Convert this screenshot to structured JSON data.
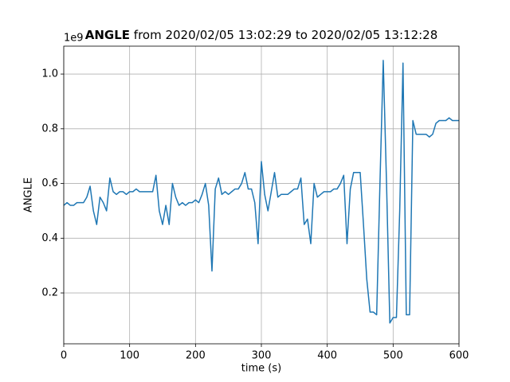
{
  "chart_data": {
    "type": "line",
    "title_bold": "ANGLE",
    "title": "from 2020/02/05 13:02:29 to 2020/02/05 13:12:28",
    "x_label": "time (s)",
    "y_label": "ANGLE",
    "y_offset_label": "1e9",
    "xlim": [
      0,
      600
    ],
    "ylim": [
      0.014,
      1.102
    ],
    "xticks": [
      0,
      100,
      200,
      300,
      400,
      500,
      600
    ],
    "yticks": [
      0.2,
      0.4,
      0.6,
      0.8,
      {
        "value": 1,
        "label": "1.0"
      }
    ],
    "grid": true,
    "x": [
      0,
      5,
      10,
      15,
      20,
      25,
      30,
      35,
      40,
      45,
      50,
      55,
      60,
      65,
      70,
      75,
      80,
      85,
      90,
      95,
      100,
      105,
      110,
      115,
      120,
      125,
      130,
      135,
      140,
      145,
      150,
      155,
      160,
      165,
      170,
      175,
      180,
      185,
      190,
      195,
      200,
      205,
      210,
      215,
      220,
      225,
      230,
      235,
      240,
      245,
      250,
      255,
      260,
      265,
      270,
      275,
      280,
      285,
      290,
      295,
      300,
      305,
      310,
      315,
      320,
      325,
      330,
      335,
      340,
      345,
      350,
      355,
      360,
      365,
      370,
      375,
      380,
      385,
      390,
      395,
      400,
      405,
      410,
      415,
      420,
      425,
      430,
      435,
      440,
      445,
      450,
      455,
      460,
      465,
      470,
      475,
      480,
      485,
      490,
      495,
      500,
      505,
      510,
      515,
      520,
      525,
      530,
      535,
      540,
      545,
      550,
      555,
      560,
      565,
      570,
      575,
      580,
      585,
      590,
      595,
      600
    ],
    "series": [
      {
        "name": "ANGLE",
        "color": "#1f77b4",
        "values": [
          0.52,
          0.53,
          0.52,
          0.52,
          0.53,
          0.53,
          0.53,
          0.55,
          0.59,
          0.5,
          0.45,
          0.55,
          0.53,
          0.5,
          0.62,
          0.57,
          0.56,
          0.57,
          0.57,
          0.56,
          0.57,
          0.57,
          0.58,
          0.57,
          0.57,
          0.57,
          0.57,
          0.57,
          0.63,
          0.5,
          0.45,
          0.52,
          0.45,
          0.6,
          0.55,
          0.52,
          0.53,
          0.52,
          0.53,
          0.53,
          0.54,
          0.53,
          0.56,
          0.6,
          0.52,
          0.28,
          0.58,
          0.62,
          0.56,
          0.57,
          0.56,
          0.57,
          0.58,
          0.58,
          0.6,
          0.64,
          0.58,
          0.58,
          0.53,
          0.38,
          0.68,
          0.56,
          0.5,
          0.57,
          0.64,
          0.55,
          0.56,
          0.56,
          0.56,
          0.57,
          0.58,
          0.58,
          0.62,
          0.45,
          0.47,
          0.38,
          0.6,
          0.55,
          0.56,
          0.57,
          0.57,
          0.57,
          0.58,
          0.58,
          0.6,
          0.63,
          0.38,
          0.58,
          0.64,
          0.64,
          0.64,
          0.45,
          0.25,
          0.13,
          0.13,
          0.12,
          0.6,
          1.05,
          0.6,
          0.09,
          0.11,
          0.11,
          0.5,
          1.04,
          0.12,
          0.12,
          0.83,
          0.78,
          0.78,
          0.78,
          0.78,
          0.77,
          0.78,
          0.82,
          0.83,
          0.83,
          0.83,
          0.84,
          0.83,
          0.83,
          0.83
        ]
      }
    ]
  }
}
